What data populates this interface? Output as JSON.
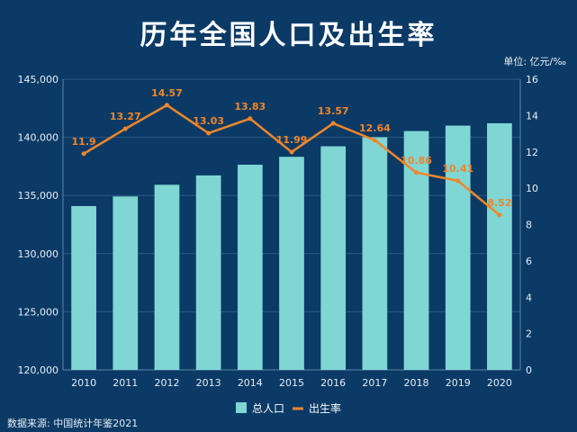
{
  "chart_data": {
    "type": "bar",
    "title": "历年全国人口及出生率",
    "unit_label": "单位: 亿元/‰",
    "source": "数据来源: 中国统计年鉴2021",
    "categories": [
      "2010",
      "2011",
      "2012",
      "2013",
      "2014",
      "2015",
      "2016",
      "2017",
      "2018",
      "2019",
      "2020"
    ],
    "series": [
      {
        "name": "总人口",
        "type": "bar",
        "axis": "left",
        "values": [
          134091,
          134916,
          135922,
          136726,
          137646,
          138326,
          139232,
          140011,
          140541,
          141008,
          141212
        ]
      },
      {
        "name": "出生率",
        "type": "line",
        "axis": "right",
        "values": [
          11.9,
          13.27,
          14.57,
          13.03,
          13.83,
          11.99,
          13.57,
          12.64,
          10.86,
          10.41,
          8.52
        ],
        "labels": [
          "11.9",
          "13.27",
          "14.57",
          "13.03",
          "13.83",
          "11.99",
          "13.57",
          "12.64",
          "10.86",
          "10.41",
          "8.52"
        ]
      }
    ],
    "y_left": {
      "min": 120000,
      "max": 145000,
      "ticks": [
        120000,
        125000,
        130000,
        135000,
        140000,
        145000
      ],
      "tick_labels": [
        "120,000",
        "125,000",
        "130,000",
        "135,000",
        "140,000",
        "145,000"
      ]
    },
    "y_right": {
      "min": 0,
      "max": 16,
      "ticks": [
        0,
        2,
        4,
        6,
        8,
        10,
        12,
        14,
        16
      ],
      "tick_labels": [
        "0",
        "2",
        "4",
        "6",
        "8",
        "10",
        "12",
        "14",
        "16"
      ]
    },
    "grid": true,
    "legend_position": "bottom",
    "colors": {
      "background": "#0b3a66",
      "bar": "#7fd6d3",
      "line": "#f0862a",
      "grid": "#2d5a85"
    }
  }
}
